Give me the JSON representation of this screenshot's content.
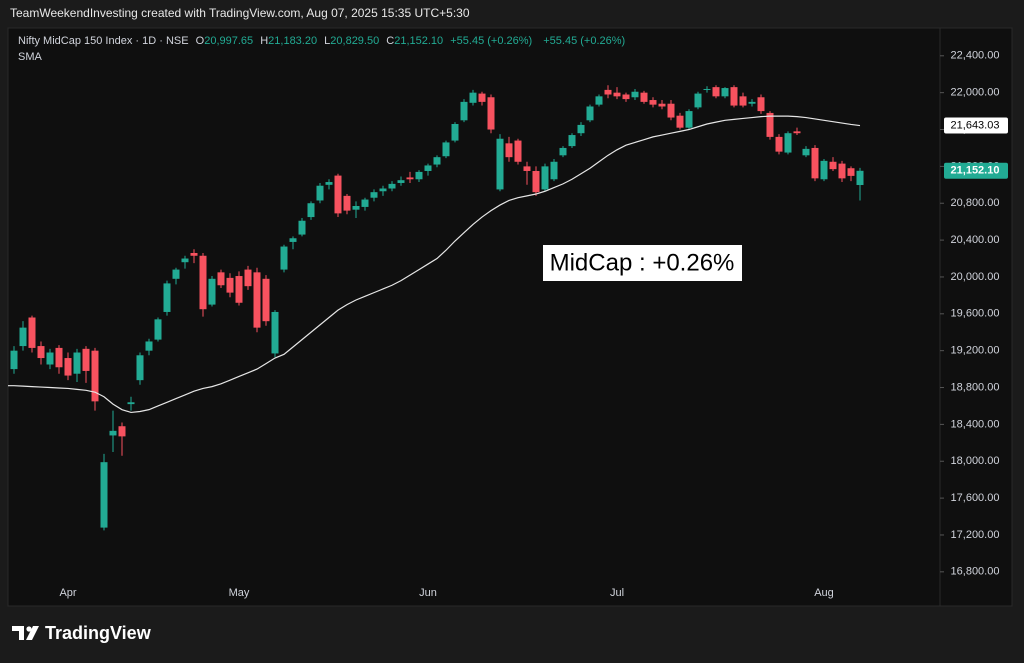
{
  "chart_data": {
    "type": "candlestick",
    "header": "TeamWeekendInvesting created with TradingView.com, Aug 07, 2025 15:35 UTC+5:30",
    "symbol": "Nifty MidCap 150 Index · 1D · NSE",
    "ohlc_legend": [
      {
        "key": "O",
        "label": "20,997.65"
      },
      {
        "key": "H",
        "label": "21,183.20"
      },
      {
        "key": "L",
        "label": "20,829.50"
      },
      {
        "key": "C",
        "label": "21,152.10"
      }
    ],
    "change_label": "+55.45 (+0.26%)",
    "annotation": "MidCap : +0.26%",
    "brand": "TradingView",
    "up_color": "#22ab94",
    "down_color": "#f7525f",
    "grid": false,
    "ylim": [
      16440,
      22680
    ],
    "yticks": [
      {
        "value": 16800,
        "label": "16,800.00"
      },
      {
        "value": 17200,
        "label": "17,200.00"
      },
      {
        "value": 17600,
        "label": "17,600.00"
      },
      {
        "value": 18000,
        "label": "18,000.00"
      },
      {
        "value": 18400,
        "label": "18,400.00"
      },
      {
        "value": 18800,
        "label": "18,800.00"
      },
      {
        "value": 19200,
        "label": "19,200.00"
      },
      {
        "value": 19600,
        "label": "19,600.00"
      },
      {
        "value": 20000,
        "label": "20,000.00"
      },
      {
        "value": 20400,
        "label": "20,400.00"
      },
      {
        "value": 20800,
        "label": "20,800.00"
      },
      {
        "value": 21200,
        "label": "21,200.00"
      },
      {
        "value": 21600,
        "label": "21,600.00"
      },
      {
        "value": 22000,
        "label": "22,000.00"
      },
      {
        "value": 22400,
        "label": "22,400.00"
      }
    ],
    "categories": [
      null,
      null,
      null,
      null,
      null,
      null,
      "Apr",
      null,
      null,
      null,
      null,
      null,
      null,
      null,
      null,
      null,
      null,
      null,
      null,
      null,
      null,
      null,
      null,
      null,
      null,
      "May",
      null,
      null,
      null,
      null,
      null,
      null,
      null,
      null,
      null,
      null,
      null,
      null,
      null,
      null,
      null,
      null,
      null,
      null,
      null,
      null,
      "Jun",
      null,
      null,
      null,
      null,
      null,
      null,
      null,
      null,
      null,
      null,
      null,
      null,
      null,
      null,
      null,
      null,
      null,
      null,
      null,
      null,
      "Jul",
      null,
      null,
      null,
      null,
      null,
      null,
      null,
      null,
      null,
      null,
      null,
      null,
      null,
      null,
      null,
      null,
      null,
      null,
      null,
      null,
      null,
      null,
      "Aug",
      null,
      null,
      null,
      null
    ],
    "open": [
      19000,
      19250,
      19560,
      19250,
      19050,
      19230,
      19120,
      18950,
      19220,
      19200,
      17280,
      18280,
      18380,
      18620,
      18880,
      19200,
      19320,
      19620,
      19980,
      20160,
      20260,
      20230,
      19700,
      20050,
      19990,
      20010,
      20080,
      20050,
      19980,
      19170,
      20080,
      20380,
      20460,
      20650,
      20830,
      21000,
      21100,
      20880,
      20730,
      20760,
      20860,
      20930,
      20960,
      21020,
      21080,
      21060,
      21150,
      21220,
      21310,
      21480,
      21700,
      21890,
      21990,
      21950,
      20950,
      21450,
      21480,
      21200,
      21150,
      20950,
      21060,
      21320,
      21420,
      21560,
      21700,
      21870,
      22030,
      22000,
      21980,
      21950,
      22000,
      21920,
      21880,
      21880,
      21750,
      21620,
      21840,
      22030,
      22060,
      21960,
      22060,
      21960,
      21880,
      21950,
      21780,
      21520,
      21350,
      21580,
      21320,
      21400,
      21060,
      21250,
      21230,
      21180,
      20997.65
    ],
    "high": [
      19250,
      19520,
      19580,
      19300,
      19220,
      19260,
      19180,
      19220,
      19250,
      19230,
      18080,
      18550,
      18420,
      18700,
      19180,
      19330,
      19560,
      19960,
      20100,
      20230,
      20300,
      20260,
      20010,
      20080,
      20040,
      20060,
      20120,
      20100,
      20020,
      19640,
      20350,
      20440,
      20640,
      20820,
      21020,
      21060,
      21120,
      20900,
      20820,
      20860,
      20950,
      20990,
      21040,
      21090,
      21140,
      21160,
      21230,
      21320,
      21480,
      21680,
      21930,
      22030,
      22010,
      21980,
      21550,
      21520,
      21500,
      21250,
      21200,
      21230,
      21280,
      21420,
      21560,
      21680,
      21870,
      21980,
      22080,
      22060,
      22000,
      22040,
      22020,
      21950,
      21920,
      21920,
      21780,
      21820,
      22010,
      22070,
      22080,
      22060,
      22080,
      22000,
      21930,
      21980,
      21800,
      21550,
      21580,
      21620,
      21420,
      21430,
      21280,
      21300,
      21260,
      21200,
      21183.2
    ],
    "low": [
      18950,
      19200,
      19180,
      19050,
      19000,
      18950,
      18880,
      18860,
      18850,
      18550,
      17250,
      18100,
      18060,
      18550,
      18830,
      19150,
      19300,
      19580,
      19920,
      20090,
      20150,
      19570,
      19680,
      19880,
      19780,
      19690,
      19860,
      19400,
      19470,
      19130,
      20050,
      20300,
      20440,
      20620,
      20800,
      20950,
      20650,
      20680,
      20640,
      20720,
      20820,
      20880,
      20930,
      20990,
      21020,
      21030,
      21100,
      21190,
      21290,
      21460,
      21680,
      21860,
      21860,
      21560,
      20930,
      21250,
      21220,
      21000,
      20880,
      20930,
      21040,
      21300,
      21400,
      21530,
      21680,
      21850,
      21940,
      21930,
      21900,
      21920,
      21880,
      21840,
      21820,
      21700,
      21600,
      21600,
      21820,
      22000,
      21940,
      21940,
      21840,
      21840,
      21850,
      21770,
      21490,
      21330,
      21330,
      21540,
      21300,
      21040,
      21040,
      21150,
      21030,
      21040,
      20829.5
    ],
    "close": [
      19200,
      19450,
      19230,
      19120,
      19180,
      19020,
      18930,
      19180,
      18980,
      18650,
      17990,
      18330,
      18270,
      18640,
      19150,
      19300,
      19540,
      19930,
      20080,
      20200,
      20230,
      19650,
      19980,
      19910,
      19830,
      19720,
      19900,
      19450,
      19520,
      19620,
      20330,
      20420,
      20610,
      20800,
      20990,
      21030,
      20690,
      20720,
      20770,
      20840,
      20920,
      20960,
      21010,
      21050,
      21060,
      21140,
      21210,
      21300,
      21460,
      21660,
      21900,
      22000,
      21900,
      21600,
      21500,
      21300,
      21250,
      21150,
      20920,
      21200,
      21250,
      21400,
      21540,
      21650,
      21850,
      21960,
      21980,
      21960,
      21930,
      22010,
      21900,
      21870,
      21850,
      21730,
      21620,
      21800,
      21990,
      22040,
      21960,
      22050,
      21860,
      21860,
      21900,
      21800,
      21520,
      21360,
      21560,
      21560,
      21390,
      21070,
      21260,
      21170,
      21070,
      21096.65,
      21152.1
    ],
    "sma": {
      "name": "SMA",
      "color": "#e6e6e6",
      "value_label": "21,643.03",
      "values": [
        18820,
        18815,
        18810,
        18805,
        18800,
        18795,
        18790,
        18780,
        18770,
        18750,
        18700,
        18620,
        18560,
        18530,
        18540,
        18560,
        18600,
        18640,
        18680,
        18720,
        18760,
        18790,
        18810,
        18840,
        18880,
        18920,
        18960,
        19000,
        19060,
        19120,
        19160,
        19240,
        19320,
        19400,
        19480,
        19560,
        19640,
        19700,
        19750,
        19790,
        19830,
        19870,
        19910,
        19960,
        20020,
        20080,
        20140,
        20200,
        20290,
        20390,
        20480,
        20570,
        20650,
        20720,
        20780,
        20830,
        20860,
        20880,
        20900,
        20930,
        20970,
        21010,
        21060,
        21120,
        21180,
        21250,
        21320,
        21380,
        21430,
        21460,
        21490,
        21520,
        21540,
        21560,
        21580,
        21600,
        21630,
        21660,
        21680,
        21700,
        21710,
        21720,
        21730,
        21740,
        21745,
        21745,
        21745,
        21740,
        21730,
        21715,
        21700,
        21685,
        21670,
        21655,
        21643.03
      ]
    }
  }
}
